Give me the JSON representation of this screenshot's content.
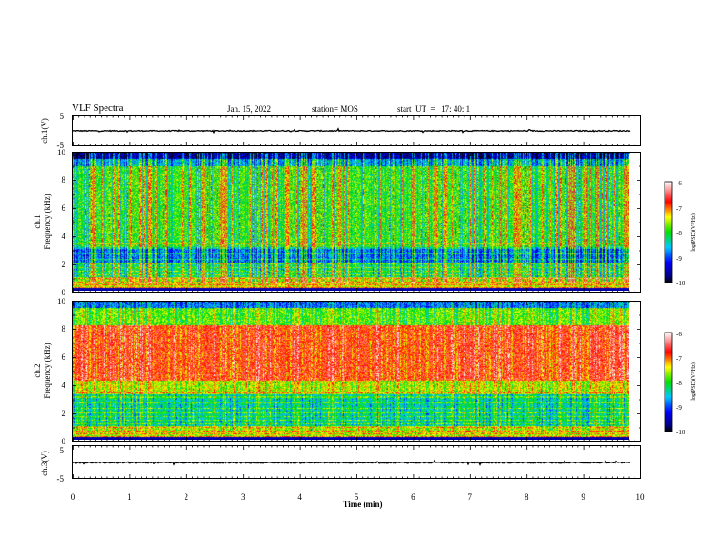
{
  "header": {
    "title": "VLF Spectra",
    "date": "Jan. 15, 2022",
    "station": "station= MOS",
    "start": "start  UT  =   17: 40: 1"
  },
  "chart_data": [
    {
      "type": "line",
      "panel": "ch1-waveform",
      "ylabel": "ch.1(V)",
      "ylim": [
        -5,
        5
      ],
      "yticks": [
        "5",
        "-5"
      ],
      "series": [
        {
          "x_range_min": [
            0,
            9.83
          ],
          "mean_value": 0.0
        }
      ]
    },
    {
      "type": "heatmap",
      "panel": "ch1-spectrogram",
      "ylabel": "ch.1\nFrequency (kHz)",
      "ylim": [
        0,
        10
      ],
      "yticks": [
        "0",
        "2",
        "4",
        "6",
        "8",
        "10"
      ],
      "x_data_range_min": [
        0,
        9.83
      ],
      "colorbar": {
        "label": "log(PSD)(V²/Hz)",
        "range": [
          -10,
          -6
        ],
        "ticks": [
          "-6",
          "-7",
          "-8",
          "-9",
          "-10"
        ]
      }
    },
    {
      "type": "heatmap",
      "panel": "ch2-spectrogram",
      "ylabel": "ch.2\nFrequency (kHz)",
      "ylim": [
        0,
        10
      ],
      "yticks": [
        "0",
        "2",
        "4",
        "6",
        "8",
        "10"
      ],
      "x_data_range_min": [
        0,
        9.83
      ],
      "colorbar": {
        "label": "log(PSD)(V²/Hz)",
        "range": [
          -10,
          -6
        ],
        "ticks": [
          "-6",
          "-7",
          "-8",
          "-9",
          "-10"
        ]
      }
    },
    {
      "type": "line",
      "panel": "ch3-waveform",
      "ylabel": "ch.3(V)",
      "ylim": [
        -5,
        5
      ],
      "yticks": [
        "5",
        "-5"
      ],
      "series": [
        {
          "x_range_min": [
            0,
            9.83
          ],
          "mean_value": -0.2
        }
      ]
    }
  ],
  "xaxis": {
    "label": "Time  (min)",
    "range": [
      0,
      10
    ],
    "ticks": [
      "0",
      "1",
      "2",
      "3",
      "4",
      "5",
      "6",
      "7",
      "8",
      "9",
      "10"
    ]
  }
}
